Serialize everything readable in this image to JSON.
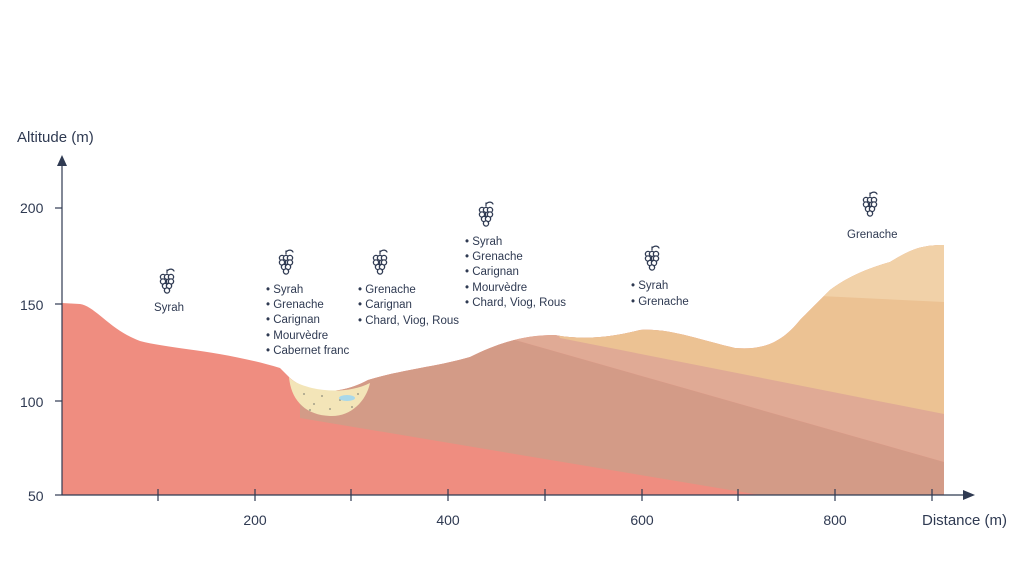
{
  "axes": {
    "y_title": "Altitude (m)",
    "x_title": "Distance (m)",
    "y_ticks": [
      "200",
      "150",
      "100",
      "50"
    ],
    "x_ticks": [
      "200",
      "400",
      "600",
      "800"
    ]
  },
  "colors": {
    "terrain_red": "#ef8d80",
    "terrain_red_dark": "#e97f72",
    "layer_brown": "#d39b87",
    "layer_pink": "#e0aa95",
    "layer_sand": "#ecc293",
    "layer_light_sand": "#f1d1a8",
    "alluvium": "#f3e5b8",
    "water": "#a8d8ea",
    "axis": "#2f3a52"
  },
  "grape_groups": [
    {
      "icon": "grape-icon",
      "varieties": [
        "Syrah"
      ],
      "bulleted": false
    },
    {
      "icon": "grape-icon",
      "varieties": [
        "Syrah",
        "Grenache",
        "Carignan",
        "Mourvèdre",
        "Cabernet franc"
      ],
      "bulleted": true
    },
    {
      "icon": "grape-icon",
      "varieties": [
        "Grenache",
        "Carignan",
        "Chard, Viog, Rous"
      ],
      "bulleted": true
    },
    {
      "icon": "grape-icon",
      "varieties": [
        "Syrah",
        "Grenache",
        "Carignan",
        "Mourvèdre",
        "Chard, Viog, Rous"
      ],
      "bulleted": true
    },
    {
      "icon": "grape-icon",
      "varieties": [
        "Syrah",
        "Grenache"
      ],
      "bulleted": true
    },
    {
      "icon": "grape-icon",
      "varieties": [
        "Grenache"
      ],
      "bulleted": false
    }
  ]
}
